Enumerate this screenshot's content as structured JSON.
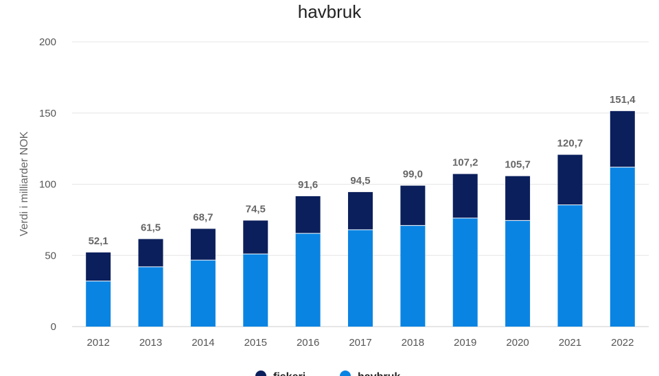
{
  "chart_data": {
    "type": "bar",
    "stacked": true,
    "title": "havbruk",
    "ylabel": "Verdi i milliarder NOK",
    "xlabel": "",
    "ylim": [
      0,
      200
    ],
    "yticks": [
      0,
      50,
      100,
      150,
      200
    ],
    "categories": [
      "2012",
      "2013",
      "2014",
      "2015",
      "2016",
      "2017",
      "2018",
      "2019",
      "2020",
      "2021",
      "2022"
    ],
    "series": [
      {
        "name": "fiskeri",
        "color": "#0b1f5c",
        "values": [
          20.1,
          19.5,
          22.0,
          23.5,
          26.1,
          26.5,
          28.0,
          31.0,
          31.2,
          35.2,
          39.4
        ]
      },
      {
        "name": "havbruk",
        "color": "#0a84e3",
        "values": [
          32.0,
          42.0,
          46.7,
          51.0,
          65.5,
          68.0,
          71.0,
          76.2,
          74.5,
          85.5,
          112.0
        ]
      }
    ],
    "totals": [
      "52,1",
      "61,5",
      "68,7",
      "74,5",
      "91,6",
      "94,5",
      "99,0",
      "107,2",
      "105,7",
      "120,7",
      "151,4"
    ],
    "grid": true,
    "legend_position": "bottom"
  }
}
